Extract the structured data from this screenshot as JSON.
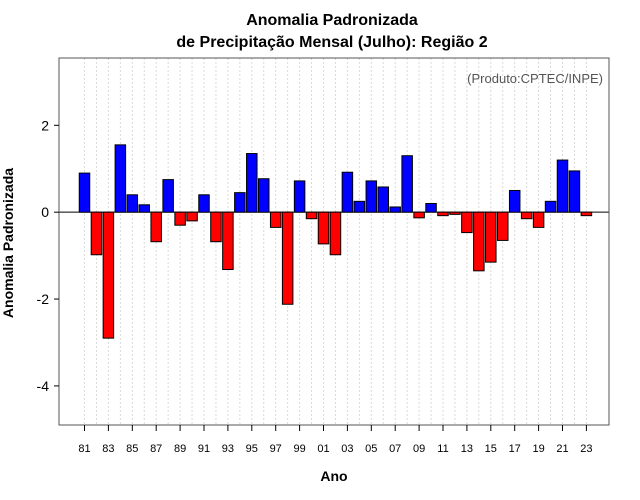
{
  "chart_data": {
    "type": "bar",
    "title_line1": "Anomalia Padronizada",
    "title_line2": "de Precipitação Mensal (Julho): Região 2",
    "xlabel": "Ano",
    "ylabel": "Anomalia Padronizada",
    "credit": "(Produto:CPTEC/INPE)",
    "ylim": [
      -4.9,
      3.55
    ],
    "yticks": [
      -4,
      -2,
      0,
      2
    ],
    "ytick_labels": [
      "-4",
      "-2",
      "0",
      "2"
    ],
    "categories": [
      "81",
      "82",
      "83",
      "84",
      "85",
      "86",
      "87",
      "88",
      "89",
      "90",
      "91",
      "92",
      "93",
      "94",
      "95",
      "96",
      "97",
      "98",
      "99",
      "00",
      "01",
      "02",
      "03",
      "04",
      "05",
      "06",
      "07",
      "08",
      "09",
      "10",
      "11",
      "12",
      "13",
      "14",
      "15",
      "16",
      "17",
      "18",
      "19",
      "20",
      "21",
      "22",
      "23"
    ],
    "xtick_labels": [
      "81",
      "83",
      "85",
      "87",
      "89",
      "91",
      "93",
      "95",
      "97",
      "99",
      "01",
      "03",
      "05",
      "07",
      "09",
      "11",
      "13",
      "15",
      "17",
      "19",
      "21",
      "23"
    ],
    "values": [
      0.9,
      -0.98,
      -2.9,
      1.55,
      0.4,
      0.17,
      -0.68,
      0.75,
      -0.3,
      -0.2,
      0.4,
      -0.68,
      -1.32,
      0.45,
      1.35,
      0.77,
      -0.35,
      -2.12,
      0.72,
      -0.15,
      -0.73,
      -0.98,
      0.92,
      0.25,
      0.72,
      0.58,
      0.12,
      1.3,
      -0.13,
      0.2,
      -0.08,
      -0.05,
      -0.47,
      -1.35,
      -1.15,
      -0.65,
      0.5,
      -0.15,
      -0.35,
      0.25,
      1.2,
      0.95,
      -0.08
    ],
    "positive_color": "#0000ff",
    "negative_color": "#ff0000",
    "grid": true
  }
}
